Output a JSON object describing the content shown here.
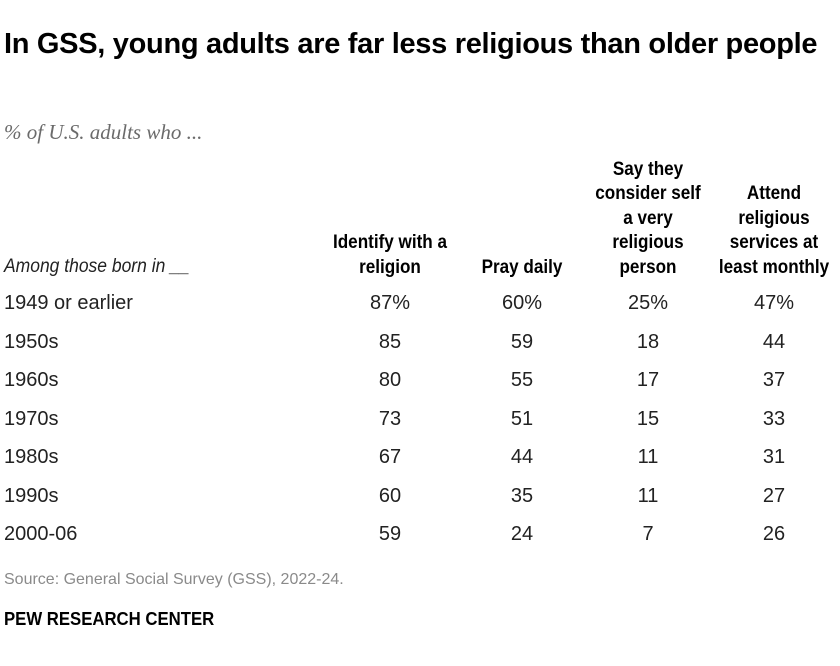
{
  "chart_data": {
    "type": "table",
    "title": "In GSS, young adults are far less religious than older people",
    "subtitle": "% of U.S. adults who ...",
    "row_header": "Among those born in __",
    "columns": [
      "Identify with a religion",
      "Pray daily",
      "Say they consider self a very religious person",
      "Attend religious services at least monthly"
    ],
    "rows": [
      {
        "label": "1949 or earlier",
        "values": [
          "87%",
          "60%",
          "25%",
          "47%"
        ]
      },
      {
        "label": "1950s",
        "values": [
          "85",
          "59",
          "18",
          "44"
        ]
      },
      {
        "label": "1960s",
        "values": [
          "80",
          "55",
          "17",
          "37"
        ]
      },
      {
        "label": "1970s",
        "values": [
          "73",
          "51",
          "15",
          "33"
        ]
      },
      {
        "label": "1980s",
        "values": [
          "67",
          "44",
          "11",
          "31"
        ]
      },
      {
        "label": "1990s",
        "values": [
          "60",
          "35",
          "11",
          "27"
        ]
      },
      {
        "label": "2000-06",
        "values": [
          "59",
          "24",
          "7",
          "26"
        ]
      }
    ],
    "source": "Source: General Social Survey (GSS), 2022-24.",
    "brand": "PEW RESEARCH CENTER"
  }
}
